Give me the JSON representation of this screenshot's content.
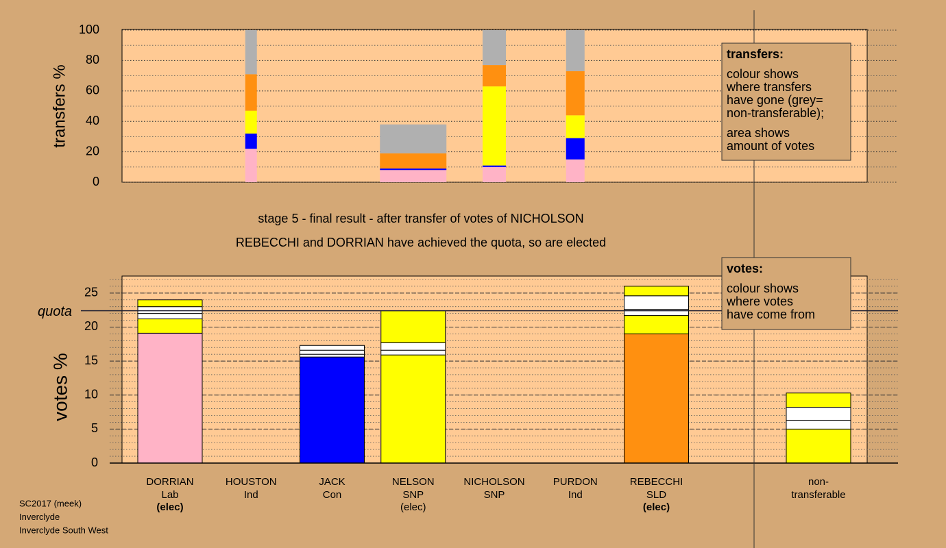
{
  "chart_data": [
    {
      "type": "bar",
      "stacked": true,
      "y_label": "transfers %",
      "ylim": [
        0,
        100
      ],
      "yticks": [
        0,
        20,
        40,
        60,
        80,
        100
      ],
      "minor_step": 10,
      "stacks": [
        null,
        {
          "values": [
            22,
            10,
            15,
            24,
            29
          ],
          "colors": [
            "#ffb3c6",
            "#0000ff",
            "#ffff00",
            "#ff9010",
            "#b0b0b0"
          ]
        },
        null,
        {
          "values": [
            8,
            1,
            10,
            19
          ],
          "colors": [
            "#ffb3c6",
            "#0000ff",
            "#ff9010",
            "#b0b0b0"
          ]
        },
        {
          "values": [
            10,
            1,
            52,
            14,
            23
          ],
          "colors": [
            "#ffb3c6",
            "#0000ff",
            "#ffff00",
            "#ff9010",
            "#b0b0b0"
          ]
        },
        {
          "values": [
            15,
            14,
            15,
            29,
            27
          ],
          "colors": [
            "#ffb3c6",
            "#0000ff",
            "#ffff00",
            "#ff9010",
            "#b0b0b0"
          ]
        },
        null,
        null,
        null
      ],
      "legend": {
        "title": "transfers:",
        "paragraphs": [
          [
            "colour shows",
            "where transfers",
            "have gone (grey=",
            "non-transferable);"
          ],
          [
            "area shows",
            "amount of votes"
          ]
        ]
      }
    },
    {
      "type": "bar",
      "stacked": true,
      "y_label": "votes %",
      "ylim": [
        0,
        27.5
      ],
      "yticks": [
        0,
        5,
        10,
        15,
        20,
        25
      ],
      "minor_step": 1,
      "quota": 22.4,
      "quota_label": "quota",
      "categories": [
        "DORRIAN",
        "HOUSTON",
        "JACK",
        "NELSON",
        "NICHOLSON",
        "PURDON",
        "REBECCHI",
        null,
        "non-"
      ],
      "parties": [
        "Lab",
        "Ind",
        "Con",
        "SNP",
        "SNP",
        "Ind",
        "SLD",
        null,
        "transferable"
      ],
      "notes": [
        "(elec)",
        null,
        null,
        "(elec)",
        null,
        null,
        "(elec)",
        null,
        null
      ],
      "notes_bold": [
        true,
        false,
        false,
        false,
        false,
        false,
        true,
        false,
        false
      ],
      "stacks": [
        {
          "values": [
            19.1,
            2.1,
            0.8,
            1.0,
            1.0
          ],
          "colors": [
            "#ffb3c6",
            "#ffff00",
            "#ffffff",
            "#ffffff",
            "#ffff00"
          ]
        },
        {
          "values": [
            0
          ],
          "colors": [
            null
          ]
        },
        {
          "values": [
            15.6,
            0.4,
            0.6,
            0.7
          ],
          "colors": [
            "#0000ff",
            "#ffffff",
            "#ffffff",
            "#ffffff"
          ]
        },
        {
          "values": [
            15.9,
            0.7,
            1.1,
            4.7
          ],
          "colors": [
            "#ffff00",
            "#ffffff",
            "#ffffff",
            "#ffff00"
          ]
        },
        {
          "values": [
            0
          ],
          "colors": [
            null
          ]
        },
        {
          "values": [
            0
          ],
          "colors": [
            null
          ]
        },
        {
          "values": [
            19.0,
            2.7,
            0.9,
            2.0,
            1.4
          ],
          "colors": [
            "#ff9010",
            "#ffff00",
            "#ffffff",
            "#ffffff",
            "#ffff00"
          ]
        },
        null,
        {
          "values": [
            5.0,
            1.3,
            1.9,
            2.1
          ],
          "colors": [
            "#ffff00",
            "#ffffff",
            "#ffffff",
            "#ffff00"
          ]
        }
      ],
      "legend": {
        "title": "votes:",
        "paragraphs": [
          [
            "colour shows",
            "where votes",
            "have come from"
          ]
        ]
      }
    }
  ],
  "captions": [
    "stage 5 - final result - after transfer of votes of NICHOLSON",
    "REBECCHI and DORRIAN have achieved the quota, so are elected"
  ],
  "footer": [
    "SC2017 (meek)",
    "Inverclyde",
    "Inverclyde South West"
  ]
}
